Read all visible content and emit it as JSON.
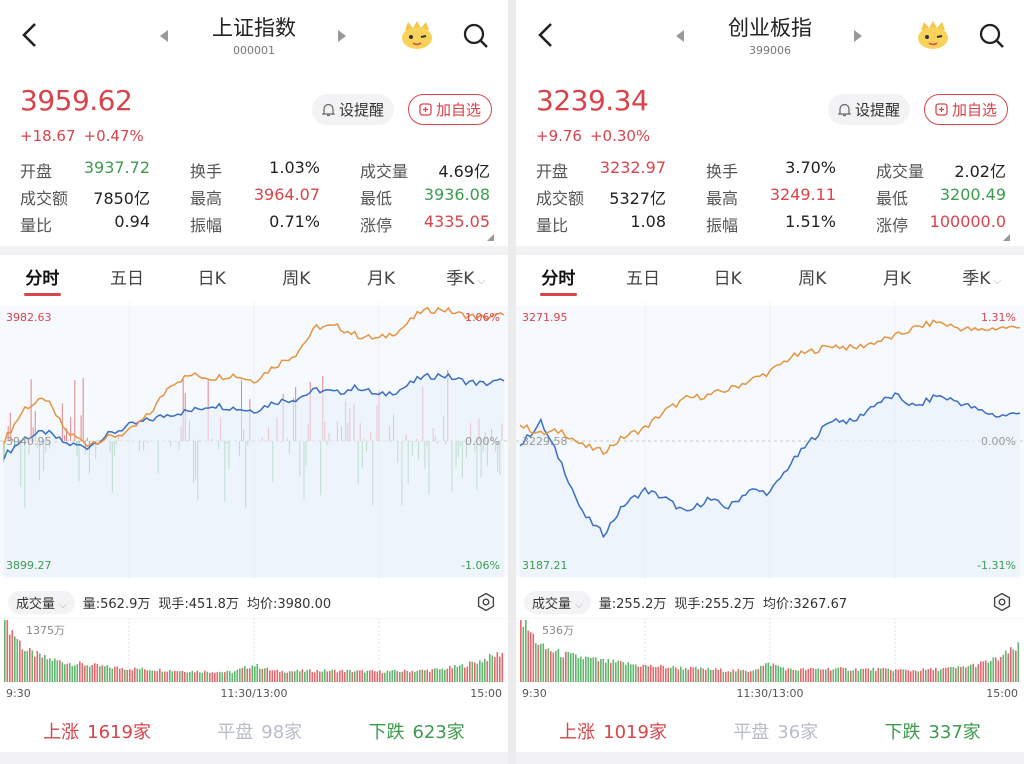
{
  "colors": {
    "up": "#d9444a",
    "down": "#3c9c4e",
    "price_line": "#3a6fc4",
    "avg_line": "#e5953f",
    "flat": "#b9bdc7"
  },
  "icons": {
    "back": "chevron-left-icon",
    "prev": "triangle-left-icon",
    "next": "triangle-right-icon",
    "mascot": "mascot-icon",
    "search": "search-icon",
    "bell": "bell-icon",
    "add": "plus-square-icon",
    "gear": "gear-icon"
  },
  "panels": [
    {
      "title": "上证指数",
      "code": "000001",
      "price": "3959.62",
      "change": "+18.67",
      "change_pct": "+0.47%",
      "alert_label": "设提醒",
      "add_label": "加自选",
      "stats": [
        [
          {
            "label": "开盘",
            "value": "3937.72",
            "tone": "green"
          },
          {
            "label": "换手",
            "value": "1.03%",
            "tone": "v"
          },
          {
            "label": "成交量",
            "value": "4.69亿",
            "tone": "v"
          }
        ],
        [
          {
            "label": "成交额",
            "value": "7850亿",
            "tone": "v"
          },
          {
            "label": "最高",
            "value": "3964.07",
            "tone": "red"
          },
          {
            "label": "最低",
            "value": "3936.08",
            "tone": "green"
          }
        ],
        [
          {
            "label": "量比",
            "value": "0.94",
            "tone": "v"
          },
          {
            "label": "振幅",
            "value": "0.71%",
            "tone": "v"
          },
          {
            "label": "涨停",
            "value": "4335.05",
            "tone": "red"
          }
        ]
      ],
      "tabs": [
        "分时",
        "五日",
        "日K",
        "周K",
        "月K",
        "季K"
      ],
      "volume_header": {
        "selector": "成交量",
        "volume": "量:562.9万",
        "current": "现手:451.8万",
        "avg_price": "均价:3980.00"
      },
      "breadth": {
        "up_label": "上涨",
        "up_count": "1619家",
        "flat_label": "平盘",
        "flat_count": "98家",
        "down_label": "下跌",
        "down_count": "623家"
      }
    },
    {
      "title": "创业板指",
      "code": "399006",
      "price": "3239.34",
      "change": "+9.76",
      "change_pct": "+0.30%",
      "alert_label": "设提醒",
      "add_label": "加自选",
      "stats": [
        [
          {
            "label": "开盘",
            "value": "3232.97",
            "tone": "red"
          },
          {
            "label": "换手",
            "value": "3.70%",
            "tone": "v"
          },
          {
            "label": "成交量",
            "value": "2.02亿",
            "tone": "v"
          }
        ],
        [
          {
            "label": "成交额",
            "value": "5327亿",
            "tone": "v"
          },
          {
            "label": "最高",
            "value": "3249.11",
            "tone": "red"
          },
          {
            "label": "最低",
            "value": "3200.49",
            "tone": "green"
          }
        ],
        [
          {
            "label": "量比",
            "value": "1.08",
            "tone": "v"
          },
          {
            "label": "振幅",
            "value": "1.51%",
            "tone": "v"
          },
          {
            "label": "涨停",
            "value": "100000.0",
            "tone": "red"
          }
        ]
      ],
      "tabs": [
        "分时",
        "五日",
        "日K",
        "周K",
        "月K",
        "季K"
      ],
      "volume_header": {
        "selector": "成交量",
        "volume": "量:255.2万",
        "current": "现手:255.2万",
        "avg_price": "均价:3267.67"
      },
      "breadth": {
        "up_label": "上涨",
        "up_count": "1019家",
        "flat_label": "平盘",
        "flat_count": "36家",
        "down_label": "下跌",
        "down_count": "337家"
      }
    }
  ],
  "chart_data": [
    {
      "type": "line",
      "title": "上证指数 分时",
      "y_top_label": "3982.63",
      "y_mid_label": "3940.95",
      "y_bottom_label": "3899.27",
      "pct_top_label": "1.06%",
      "pct_mid_label": "0.00%",
      "pct_bottom_label": "-1.06%",
      "ylim": [
        3899.27,
        3982.63
      ],
      "prev_close": 3940.95,
      "series": [
        {
          "name": "price",
          "values": [
            3936,
            3942,
            3944,
            3940,
            3939,
            3943,
            3946,
            3948,
            3950,
            3951,
            3953,
            3952,
            3951,
            3954,
            3955,
            3958,
            3957,
            3959,
            3956,
            3958,
            3962,
            3963,
            3961,
            3960,
            3961
          ]
        },
        {
          "name": "leading",
          "values": [
            3941,
            3952,
            3955,
            3944,
            3940,
            3942,
            3944,
            3950,
            3960,
            3963,
            3962,
            3963,
            3961,
            3966,
            3970,
            3979,
            3979,
            3976,
            3975,
            3978,
            3984,
            3985,
            3983,
            3982,
            3983
          ]
        }
      ],
      "volume": {
        "max_label": "1375万",
        "x_labels": [
          "9:30",
          "11:30/13:00",
          "15:00"
        ],
        "profile": [
          1375,
          700,
          520,
          430,
          380,
          330,
          300,
          280,
          260,
          240,
          230,
          220,
          380,
          240,
          240,
          250,
          250,
          240,
          230,
          240,
          250,
          280,
          350,
          480,
          650
        ]
      }
    },
    {
      "type": "line",
      "title": "创业板指 分时",
      "y_top_label": "3271.95",
      "y_mid_label": "3229.58",
      "y_bottom_label": "3187.21",
      "pct_top_label": "1.31%",
      "pct_mid_label": "0.00%",
      "pct_bottom_label": "-1.31%",
      "ylim": [
        3187.21,
        3271.95
      ],
      "prev_close": 3229.58,
      "series": [
        {
          "name": "price",
          "values": [
            3228,
            3236,
            3222,
            3205,
            3198,
            3208,
            3213,
            3210,
            3205,
            3210,
            3207,
            3213,
            3212,
            3222,
            3230,
            3237,
            3236,
            3242,
            3245,
            3241,
            3245,
            3243,
            3240,
            3238,
            3239
          ]
        },
        {
          "name": "leading",
          "values": [
            3235,
            3232,
            3233,
            3228,
            3226,
            3231,
            3234,
            3240,
            3244,
            3245,
            3247,
            3250,
            3253,
            3258,
            3260,
            3262,
            3261,
            3263,
            3265,
            3268,
            3270,
            3268,
            3267,
            3268,
            3268
          ]
        }
      ],
      "volume": {
        "max_label": "536万",
        "x_labels": [
          "9:30",
          "11:30/13:00",
          "15:00"
        ],
        "profile": [
          536,
          300,
          240,
          210,
          180,
          160,
          140,
          130,
          120,
          110,
          100,
          95,
          160,
          105,
          110,
          115,
          110,
          110,
          105,
          100,
          110,
          120,
          150,
          200,
          300
        ]
      }
    }
  ]
}
